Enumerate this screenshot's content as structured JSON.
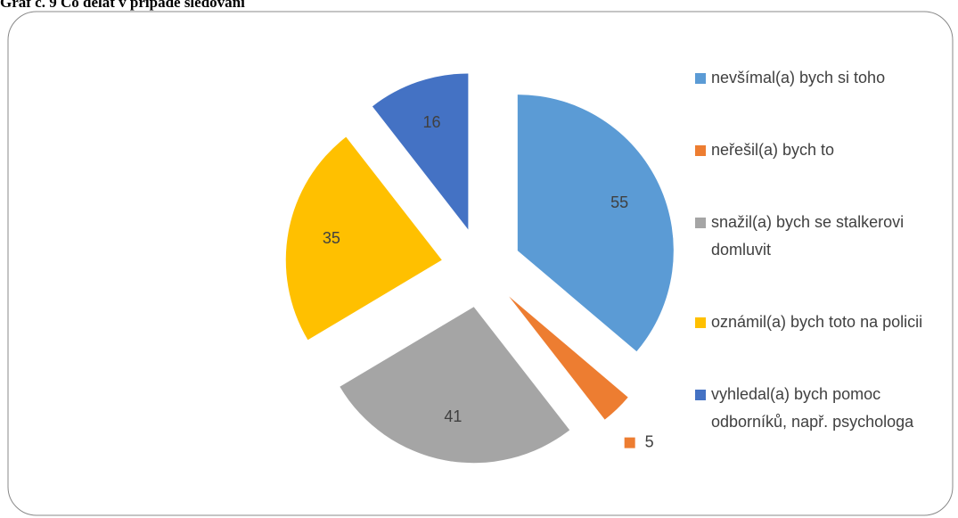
{
  "chart_data": {
    "type": "pie",
    "title": "Graf č. 9 Co dělat v případě sledování",
    "categories": [
      "nevšímal(a) bych si toho",
      "neřešil(a) bych to",
      "snažil(a) bych se stalkerovi domluvit",
      "oznámil(a) bych toto na policii",
      "vyhledal(a) bych pomoc odborníků, např. psychologa"
    ],
    "values": [
      55,
      5,
      41,
      35,
      16
    ],
    "colors": [
      "#5b9bd5",
      "#ed7d31",
      "#a5a5a5",
      "#ffc000",
      "#4472c4"
    ],
    "legend": "right"
  }
}
